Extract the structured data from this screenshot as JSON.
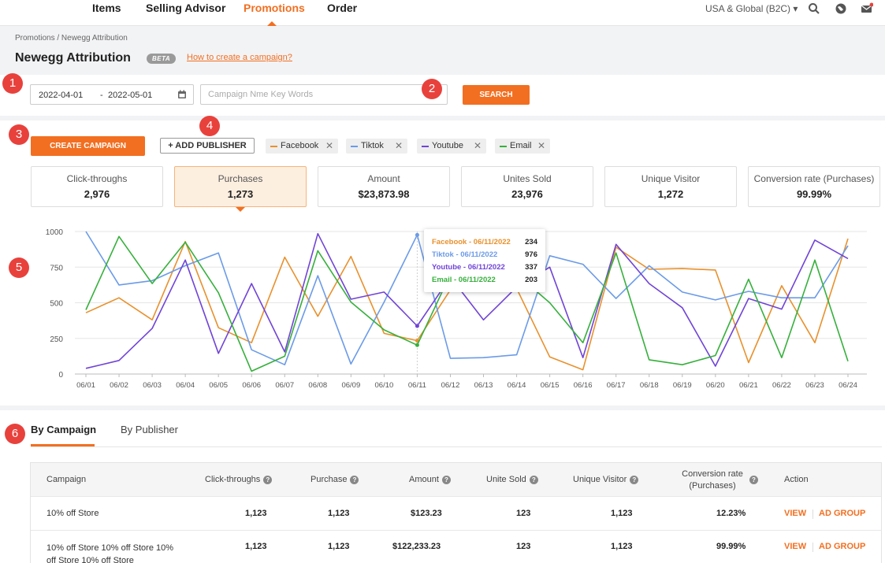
{
  "nav": {
    "items": [
      "Items",
      "Selling Advisor",
      "Promotions",
      "Order"
    ],
    "active_index": 2,
    "region": "USA & Global (B2C)"
  },
  "header": {
    "breadcrumb": "Promotions / Newegg Attribution",
    "title": "Newegg Attribution",
    "badge": "BETA",
    "help_link": "How to create a campaign?"
  },
  "search": {
    "date_start": "2022-04-01",
    "date_sep": "-",
    "date_end": "2022-05-01",
    "placeholder": "Campaign Nme Key Words",
    "button": "SEARCH"
  },
  "actions": {
    "create": "CREATE CAMPAIGN",
    "add_publisher": "+ ADD PUBLISHER"
  },
  "publishers": [
    {
      "name": "Facebook",
      "color": "#e8912d"
    },
    {
      "name": "Tiktok",
      "color": "#6b9be8"
    },
    {
      "name": "Youtube",
      "color": "#7044d6"
    },
    {
      "name": "Email",
      "color": "#36b03c"
    }
  ],
  "metrics": [
    {
      "label": "Click-throughs",
      "value": "2,976"
    },
    {
      "label": "Purchases",
      "value": "1,273"
    },
    {
      "label": "Amount",
      "value": "$23,873.98"
    },
    {
      "label": "Unites Sold",
      "value": "23,976"
    },
    {
      "label": "Unique Visitor",
      "value": "1,272"
    },
    {
      "label": "Conversion rate (Purchases)",
      "value": "99.99%"
    }
  ],
  "chart_data": {
    "type": "line",
    "x": [
      "06/01",
      "06/02",
      "06/03",
      "06/04",
      "06/05",
      "06/06",
      "06/07",
      "06/08",
      "06/09",
      "06/10",
      "06/11",
      "06/12",
      "06/13",
      "06/14",
      "06/15",
      "06/16",
      "06/17",
      "06/18",
      "06/19",
      "06/20",
      "06/21",
      "06/22",
      "06/23",
      "06/24"
    ],
    "ylim": [
      0,
      1000
    ],
    "yticks": [
      0,
      250,
      500,
      750,
      1000
    ],
    "grid": true,
    "series": [
      {
        "name": "Facebook",
        "color": "#e8912d",
        "values": [
          430,
          535,
          380,
          930,
          325,
          220,
          820,
          405,
          825,
          285,
          234,
          590,
          610,
          600,
          120,
          30,
          890,
          735,
          740,
          730,
          80,
          620,
          220,
          950
        ]
      },
      {
        "name": "Tiktok",
        "color": "#6b9be8",
        "values": [
          1000,
          625,
          655,
          760,
          850,
          170,
          65,
          690,
          70,
          505,
          976,
          110,
          115,
          135,
          830,
          770,
          530,
          760,
          575,
          520,
          580,
          535,
          535,
          900
        ]
      },
      {
        "name": "Youtube",
        "color": "#7044d6",
        "values": [
          40,
          95,
          320,
          800,
          145,
          635,
          155,
          985,
          525,
          575,
          337,
          680,
          380,
          610,
          750,
          115,
          910,
          635,
          465,
          55,
          530,
          455,
          940,
          810
        ]
      },
      {
        "name": "Email",
        "color": "#36b03c",
        "values": [
          450,
          965,
          635,
          925,
          570,
          20,
          125,
          865,
          505,
          310,
          203,
          700,
          700,
          700,
          500,
          220,
          850,
          100,
          65,
          130,
          665,
          115,
          800,
          90
        ]
      }
    ],
    "tooltip": {
      "x": "06/11",
      "rows": [
        {
          "label": "Facebook - 06/11/2022",
          "value": "234",
          "color": "#e8912d"
        },
        {
          "label": "Tiktok - 06/11/2022",
          "value": "976",
          "color": "#6b9be8"
        },
        {
          "label": "Youtube - 06/11/2022",
          "value": "337",
          "color": "#7044d6"
        },
        {
          "label": "Email - 06/11/2022",
          "value": "203",
          "color": "#36b03c"
        }
      ]
    }
  },
  "tabs": [
    "By Campaign",
    "By Publisher"
  ],
  "table": {
    "headers": [
      "Campaign",
      "Click-throughs",
      "Purchase",
      "Amount",
      "Unite Sold",
      "Unique Visitor",
      "Conversion rate",
      "(Purchases)",
      "Action"
    ],
    "rows": [
      {
        "campaign": "10% off Store",
        "campaign2": "",
        "clicks": "1,123",
        "purchase": "1,123",
        "amount": "$123.23",
        "sold": "123",
        "visitors": "1,123",
        "rate": "12.23%"
      },
      {
        "campaign": "10% off Store 10% off Store 10%",
        "campaign2": "off Store 10% off Store",
        "clicks": "1,123",
        "purchase": "1,123",
        "amount": "$122,233.23",
        "sold": "123",
        "visitors": "1,123",
        "rate": "99.99%"
      }
    ],
    "action_view": "VIEW",
    "action_group": "AD GROUP"
  },
  "markers": [
    "1",
    "2",
    "3",
    "4",
    "5",
    "6"
  ]
}
